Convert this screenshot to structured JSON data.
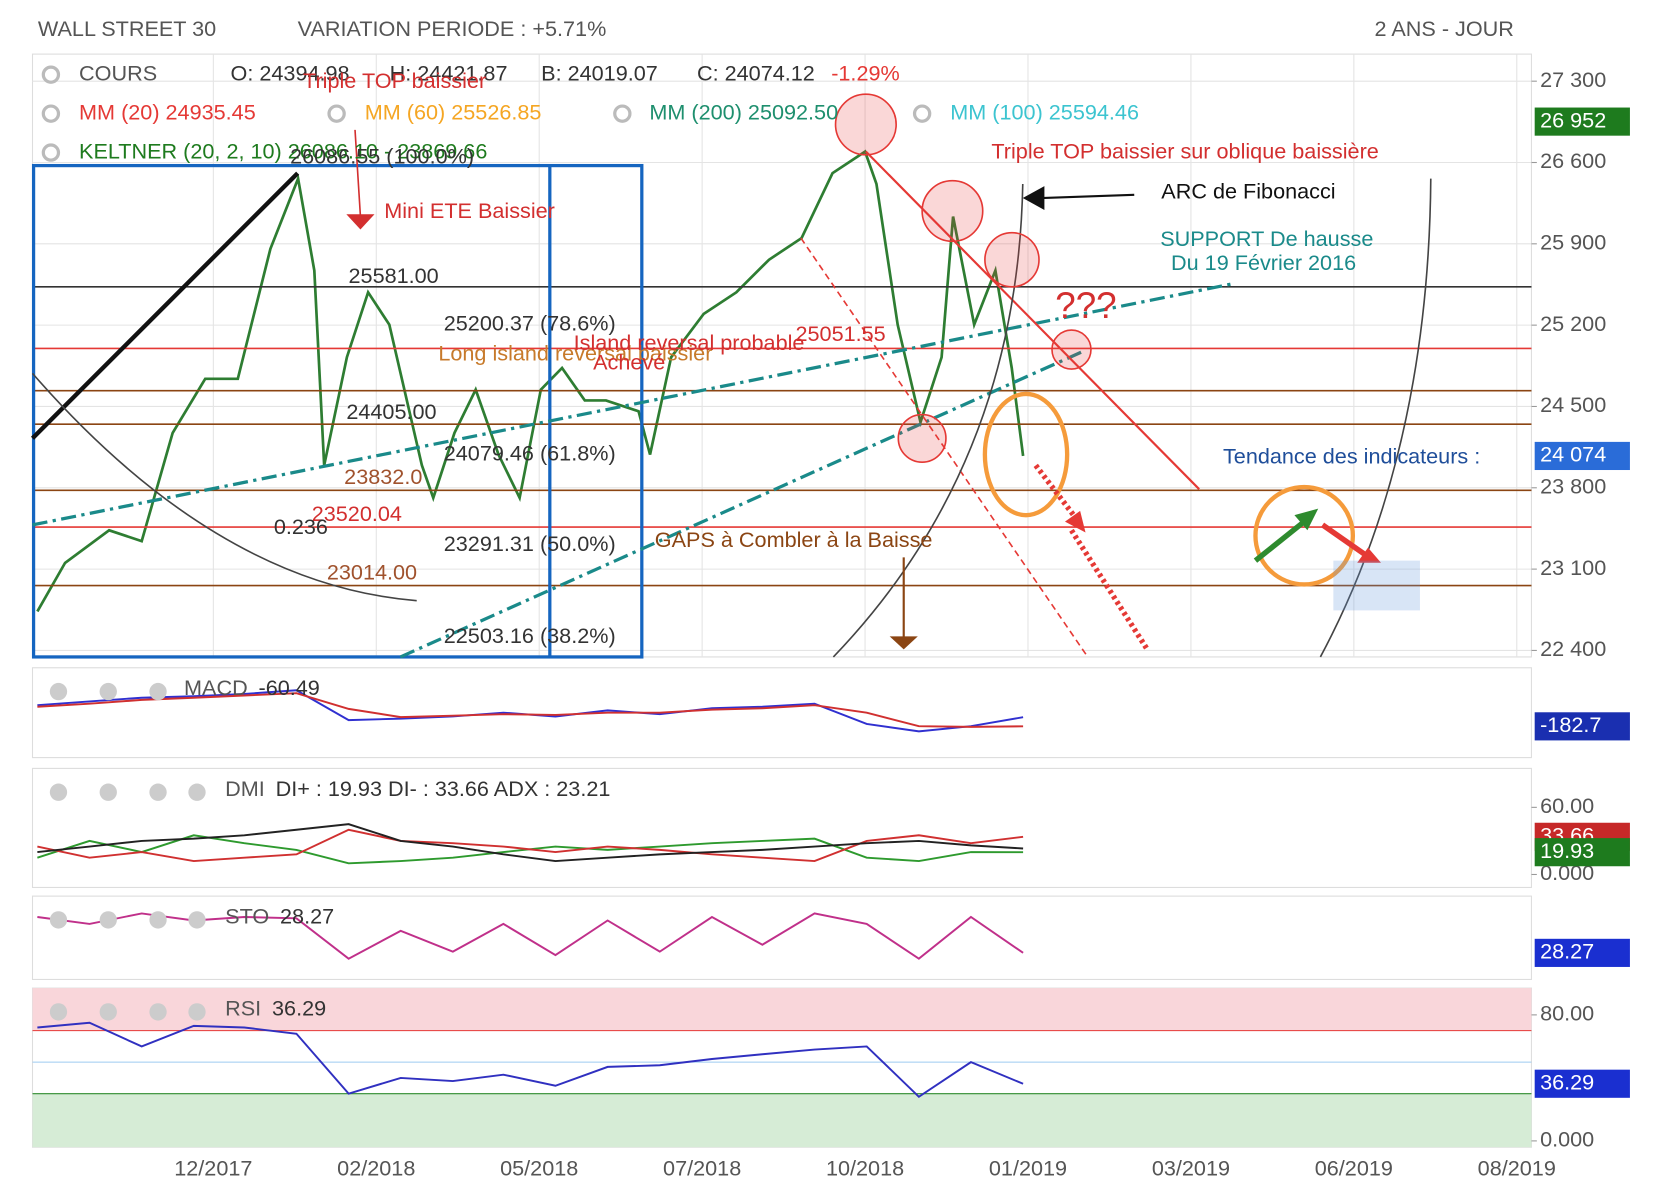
{
  "header": {
    "instrument": "WALL STREET 30",
    "variation": "VARIATION PERIODE : +5.71%",
    "period": "2 ANS - JOUR"
  },
  "legend": {
    "open": "O: 24394.98",
    "high": "H: 24421.87",
    "low": "B: 24019.07",
    "close": "C: 24074.12",
    "change": "-1.29%",
    "mm20": "MM (20) 24935.45",
    "mm60": "MM (60) 25526.85",
    "mm200": "MM (200) 25092.50",
    "mm100": "MM (100) 25594.46",
    "keltner": "KELTNER (20, 2, 10) 26086.10 - 23869.66"
  },
  "chart_data": [
    {
      "type": "line",
      "xlim": [
        -1.11,
        8.09
      ],
      "xticks": [
        {
          "value": 0,
          "label": "12/2017"
        },
        {
          "value": 1,
          "label": "02/2018"
        },
        {
          "value": 2,
          "label": "05/2018"
        },
        {
          "value": 3,
          "label": "07/2018"
        },
        {
          "value": 4,
          "label": "10/2018"
        },
        {
          "value": 5,
          "label": "01/2019"
        },
        {
          "value": 6,
          "label": "03/2019"
        },
        {
          "value": 7,
          "label": "06/2019"
        },
        {
          "value": 8,
          "label": "08/2019"
        }
      ],
      "ylim": [
        22344,
        27533
      ],
      "yticks": [
        {
          "value": 27300,
          "label": "27 300"
        },
        {
          "value": 26600,
          "label": "26 600"
        },
        {
          "value": 25900,
          "label": "25 900"
        },
        {
          "value": 25200,
          "label": "25 200"
        },
        {
          "value": 24500,
          "label": "24 500"
        },
        {
          "value": 23800,
          "label": "23 800"
        },
        {
          "value": 23100,
          "label": "23 100"
        },
        {
          "value": 22400,
          "label": "22 400"
        }
      ],
      "grid": true,
      "x": [
        -1.08,
        -0.91,
        -0.64,
        -0.44,
        -0.25,
        -0.05,
        0.15,
        0.35,
        0.52,
        0.62,
        0.68,
        0.82,
        0.95,
        1.08,
        1.28,
        1.35,
        1.48,
        1.61,
        1.75,
        1.88,
        2.01,
        2.14,
        2.28,
        2.41,
        2.61,
        2.68,
        2.81,
        3.01,
        3.21,
        3.41,
        3.61,
        3.8,
        4.0,
        4.07,
        4.2,
        4.34,
        4.47,
        4.54,
        4.67,
        4.8,
        4.9,
        4.97
      ],
      "series": [
        {
          "name": "COURS",
          "color": "#2e7d32",
          "values": [
            22735,
            23154,
            23434,
            23341,
            24272,
            24738,
            24738,
            25856,
            26462,
            25670,
            23993,
            24924,
            25483,
            25204,
            23993,
            23713,
            24272,
            24645,
            24086,
            23713,
            24645,
            24831,
            24552,
            24552,
            24459,
            24086,
            24924,
            25297,
            25483,
            25763,
            25949,
            26508,
            26694,
            26415,
            25204,
            24365,
            24924,
            26135,
            25204,
            25670,
            24831,
            24074
          ]
        }
      ],
      "badges": [
        {
          "value": 26952,
          "label": "26 952",
          "color": "#1e7b1e"
        },
        {
          "value": 24074,
          "label": "24 074",
          "color": "#2a6cd8"
        }
      ],
      "annotations": [
        {
          "text": "Triple TOP baissier",
          "color": "#d32f2f"
        },
        {
          "text": "26086.55 (100.0%)",
          "color": "#333"
        },
        {
          "text": "Mini ETE Baissier",
          "color": "#d32f2f"
        },
        {
          "text": "25581.00",
          "color": "#333"
        },
        {
          "text": "25200.37 (78.6%)",
          "color": "#333"
        },
        {
          "text": "Long island reversal baissier",
          "color": "#c77a2a"
        },
        {
          "text": "Island reversal probable",
          "color": "#d32f2f"
        },
        {
          "text": "Achevé",
          "color": "#d32f2f"
        },
        {
          "text": "25051.55",
          "color": "#d32f2f"
        },
        {
          "text": "24405.00",
          "color": "#333"
        },
        {
          "text": "24079.46 (61.8%)",
          "color": "#333"
        },
        {
          "text": "23832.0",
          "color": "#a0522d"
        },
        {
          "text": "23520.04",
          "color": "#d32f2f"
        },
        {
          "text": "0.236",
          "color": "#333"
        },
        {
          "text": "23291.31 (50.0%)",
          "color": "#333"
        },
        {
          "text": "23014.00",
          "color": "#a0522d"
        },
        {
          "text": "22503.16 (38.2%)",
          "color": "#333"
        },
        {
          "text": "GAPS à Combler à la Baisse",
          "color": "#8b4513"
        },
        {
          "text": "Triple TOP baissier sur oblique baissière",
          "color": "#d32f2f"
        },
        {
          "text": "ARC de Fibonacci",
          "color": "#111"
        },
        {
          "text": "SUPPORT De hausse",
          "color": "#1a8a8a"
        },
        {
          "text": "Du 19 Février 2016",
          "color": "#1a8a8a"
        },
        {
          "text": "???",
          "color": "#d32f2f"
        },
        {
          "text": "Tendance des indicateurs :",
          "color": "#1f4e9a"
        }
      ]
    },
    {
      "type": "line",
      "title": "MACD",
      "title_value": "-60.49",
      "xlim": [
        -1.11,
        8.09
      ],
      "ylim": [
        -600,
        600
      ],
      "x": [
        -1.08,
        -0.76,
        -0.44,
        -0.12,
        0.19,
        0.51,
        0.83,
        1.15,
        1.47,
        1.78,
        2.1,
        2.42,
        2.74,
        3.06,
        3.37,
        3.69,
        4.01,
        4.33,
        4.65,
        4.97
      ],
      "series": [
        {
          "color": "#3030d0",
          "values": [
            100,
            150,
            200,
            220,
            250,
            300,
            -100,
            -80,
            -50,
            0,
            -50,
            30,
            -20,
            60,
            80,
            120,
            -150,
            -250,
            -180,
            -60.49
          ]
        },
        {
          "color": "#d03030",
          "values": [
            80,
            120,
            170,
            200,
            230,
            260,
            50,
            -60,
            -40,
            -20,
            -30,
            0,
            0,
            40,
            60,
            100,
            0,
            -180,
            -190,
            -182.7
          ]
        }
      ],
      "badges": [
        {
          "value": -182.7,
          "label": "-182.7",
          "color": "#1a2fb0"
        }
      ]
    },
    {
      "type": "line",
      "title": "DMI",
      "title_value": "DI+ : 19.93 DI- : 33.66 ADX : 23.21",
      "xlim": [
        -1.11,
        8.09
      ],
      "ylim": [
        -11.6,
        94.8
      ],
      "yticks": [
        {
          "value": 60,
          "label": "60.00"
        },
        {
          "value": 0,
          "label": "0.000"
        }
      ],
      "x": [
        -1.08,
        -0.76,
        -0.44,
        -0.12,
        0.19,
        0.51,
        0.83,
        1.15,
        1.47,
        1.78,
        2.1,
        2.42,
        2.74,
        3.06,
        3.37,
        3.69,
        4.01,
        4.33,
        4.65,
        4.97
      ],
      "series": [
        {
          "color": "#2e9a2e",
          "values": [
            15,
            30,
            20,
            35,
            28,
            22,
            10,
            12,
            15,
            20,
            25,
            22,
            25,
            28,
            30,
            32,
            15,
            12,
            20,
            19.93
          ]
        },
        {
          "color": "#d03030",
          "values": [
            25,
            15,
            20,
            12,
            15,
            18,
            40,
            30,
            28,
            25,
            20,
            25,
            22,
            18,
            15,
            12,
            30,
            35,
            28,
            33.66
          ]
        },
        {
          "color": "#222",
          "values": [
            20,
            25,
            30,
            32,
            35,
            40,
            45,
            30,
            25,
            18,
            12,
            15,
            18,
            20,
            22,
            25,
            28,
            30,
            26,
            23.21
          ]
        }
      ],
      "badges": [
        {
          "value": 33.66,
          "label": "33.66",
          "color": "#c62828"
        },
        {
          "value": 19.93,
          "label": "19.93",
          "color": "#1e7b1e"
        }
      ]
    },
    {
      "type": "line",
      "title": "STO",
      "title_value": "28.27",
      "xlim": [
        -1.11,
        8.09
      ],
      "ylim": [
        -10,
        110
      ],
      "x": [
        -1.08,
        -0.76,
        -0.44,
        -0.12,
        0.19,
        0.51,
        0.83,
        1.15,
        1.47,
        1.78,
        2.1,
        2.42,
        2.74,
        3.06,
        3.37,
        3.69,
        4.01,
        4.33,
        4.65,
        4.97
      ],
      "series": [
        {
          "color": "#c0308a",
          "values": [
            80,
            70,
            85,
            75,
            80,
            78,
            20,
            60,
            30,
            70,
            25,
            75,
            30,
            80,
            40,
            85,
            70,
            20,
            80,
            28.27
          ]
        }
      ],
      "badges": [
        {
          "value": 28.27,
          "label": "28.27",
          "color": "#1a2fd0"
        }
      ]
    },
    {
      "type": "line",
      "title": "RSI",
      "title_value": "36.29",
      "xlim": [
        -1.11,
        8.09
      ],
      "ylim": [
        -4,
        97
      ],
      "yticks": [
        {
          "value": 80,
          "label": "80.00"
        },
        {
          "value": 0,
          "label": "0.000"
        }
      ],
      "overbought": 70,
      "oversold": 30,
      "midline": 50,
      "x": [
        -1.08,
        -0.76,
        -0.44,
        -0.12,
        0.19,
        0.51,
        0.83,
        1.15,
        1.47,
        1.78,
        2.1,
        2.42,
        2.74,
        3.06,
        3.37,
        3.69,
        4.01,
        4.33,
        4.65,
        4.97
      ],
      "series": [
        {
          "color": "#3030c0",
          "values": [
            72,
            75,
            60,
            73,
            72,
            68,
            30,
            40,
            38,
            42,
            35,
            47,
            48,
            52,
            55,
            58,
            60,
            28,
            50,
            36.29
          ]
        }
      ],
      "badges": [
        {
          "value": 36.29,
          "label": "36.29",
          "color": "#1a2fd0"
        }
      ]
    }
  ]
}
